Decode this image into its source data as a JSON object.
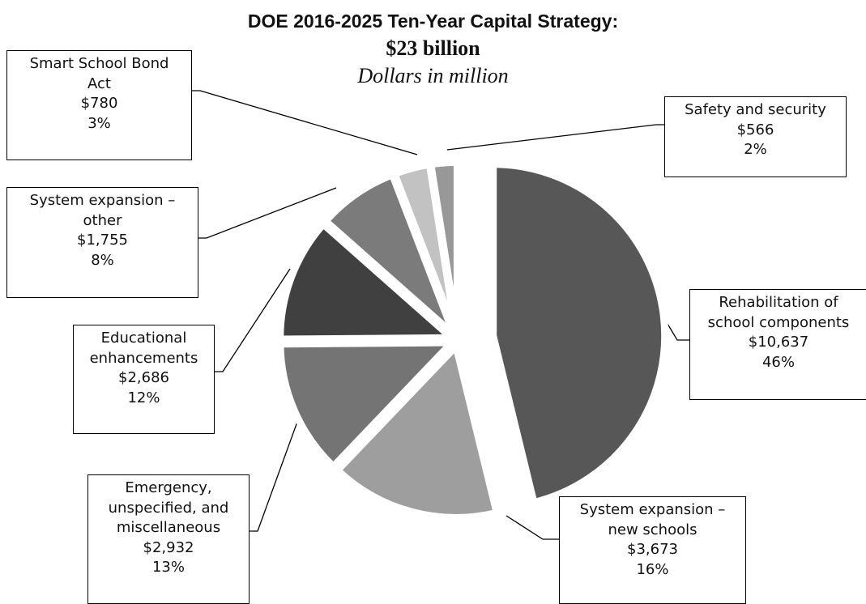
{
  "chart_data": {
    "type": "pie",
    "title": "DOE 2016-2025 Ten-Year Capital Strategy:",
    "subtitle": "$23 billion",
    "units_note": "Dollars in million",
    "slices": [
      {
        "name": "Rehabilitation of school components",
        "label_lines": [
          "Rehabilitation of",
          "school components"
        ],
        "value": 10637,
        "value_label": "$10,637",
        "pct_label": "46%",
        "color": "#575757"
      },
      {
        "name": "System expansion – new schools",
        "label_lines": [
          "System expansion –",
          "new schools"
        ],
        "value": 3673,
        "value_label": "$3,673",
        "pct_label": "16%",
        "color": "#9e9e9e"
      },
      {
        "name": "Emergency, unspecified, and miscellaneous",
        "label_lines": [
          "Emergency,",
          "unspecified, and",
          "miscellaneous"
        ],
        "value": 2932,
        "value_label": "$2,932",
        "pct_label": "13%",
        "color": "#747474"
      },
      {
        "name": "Educational enhancements",
        "label_lines": [
          "Educational",
          "enhancements"
        ],
        "value": 2686,
        "value_label": "$2,686",
        "pct_label": "12%",
        "color": "#404040"
      },
      {
        "name": "System expansion – other",
        "label_lines": [
          "System expansion –",
          "other"
        ],
        "value": 1755,
        "value_label": "$1,755",
        "pct_label": "8%",
        "color": "#7b7b7b"
      },
      {
        "name": "Smart School Bond Act",
        "label_lines": [
          "Smart School Bond",
          "Act"
        ],
        "value": 780,
        "value_label": "$780",
        "pct_label": "3%",
        "color": "#c2c2c2"
      },
      {
        "name": "Safety and security",
        "label_lines": [
          "Safety and security"
        ],
        "value": 566,
        "value_label": "$566",
        "pct_label": "2%",
        "color": "#989898"
      }
    ]
  }
}
